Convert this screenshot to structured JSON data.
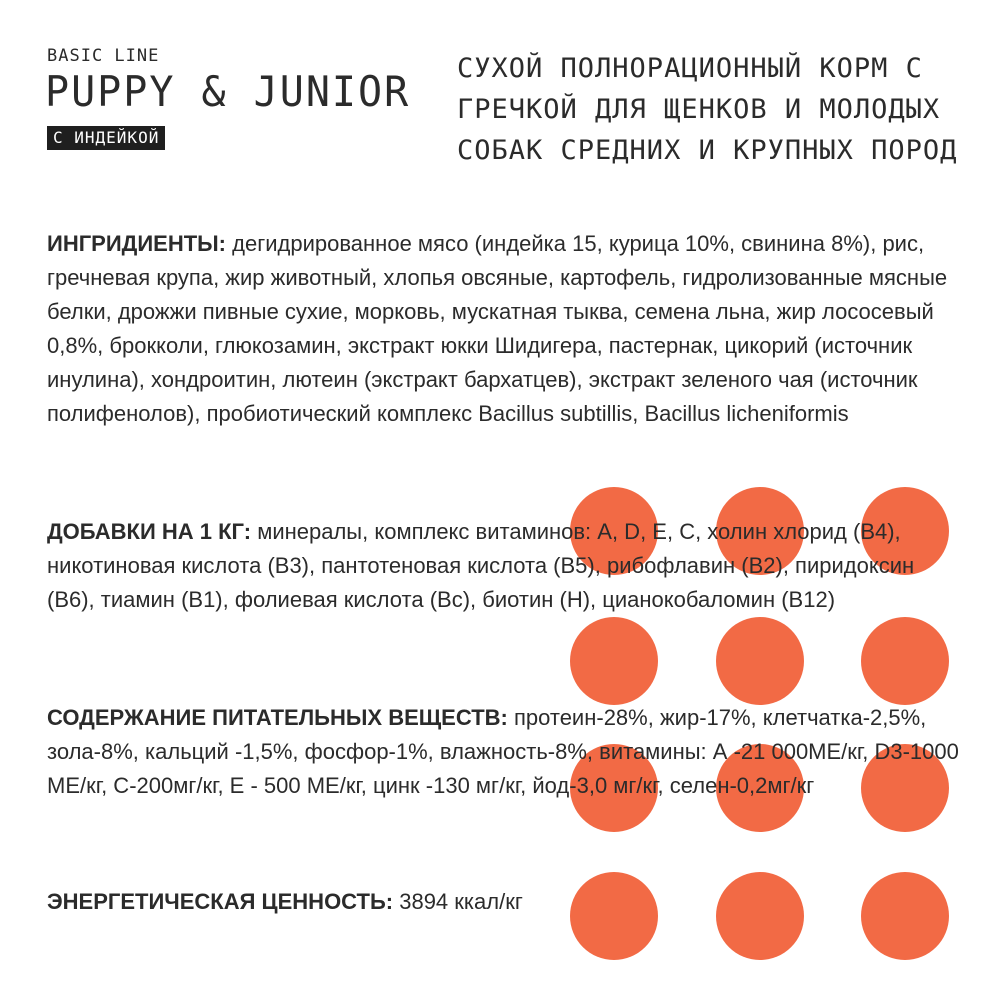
{
  "brand": {
    "line": "BASIC LINE",
    "product": "PUPPY & JUNIOR",
    "flavor": "С ИНДЕЙКОЙ"
  },
  "description": "СУХОЙ ПОЛНОРАЦИОННЫЙ КОРМ С ГРЕЧКОЙ ДЛЯ ЩЕНКОВ И МОЛОДЫХ СОБАК СРЕДНИХ И КРУПНЫХ ПОРОД",
  "sections": {
    "ingredients": {
      "label": "ИНГРИДИЕНТЫ:",
      "text": "дегидрированное мясо (индейка 15, курица 10%, свинина 8%), рис, гречневая крупа, жир животный, хлопья овсяные, картофель, гидролизованные мясные белки, дрожжи пивные сухие, морковь, мускатная тыква, семена льна, жир лососевый 0,8%, брокколи, глюкозамин, экстракт юкки Шидигера, пастернак, цикорий (источник инулина), хондроитин, лютеин (экстракт бархатцев), экстракт зеленого чая (источник полифенолов), пробиотический комплекс Bacillus subtillis, Bacillus licheniformis"
    },
    "additives": {
      "label": "ДОБАВКИ НА 1 КГ:",
      "text": "минералы, комплекс витаминов: A, D, E, C, холин хлорид (B4), никотиновая кислота (B3), пантотеновая кислота (B5), рибофлавин (B2), пиридоксин (B6), тиамин (B1), фолиевая кислота (Bc), биотин (H), цианокобаломин (B12)"
    },
    "nutrients": {
      "label": "СОДЕРЖАНИЕ ПИТАТЕЛЬНЫХ ВЕЩЕСТВ:",
      "text": "протеин-28%, жир-17%, клетчатка-2,5%, зола-8%, кальций -1,5%, фосфор-1%, влажность-8%, витамины: А -21 000МЕ/кг, D3-1000 МЕ/кг, С-200мг/кг, Е - 500 МЕ/кг, цинк -130 мг/кг, йод-3,0 мг/кг, селен-0,2мг/кг"
    },
    "energy": {
      "label": "ЭНЕРГЕТИЧЕСКАЯ ЦЕННОСТЬ:",
      "text": "3894 ккал/кг"
    }
  },
  "colors": {
    "accent_dots": "#f26a45",
    "text": "#2b2b2b",
    "badge_bg": "#1f1f1f"
  }
}
